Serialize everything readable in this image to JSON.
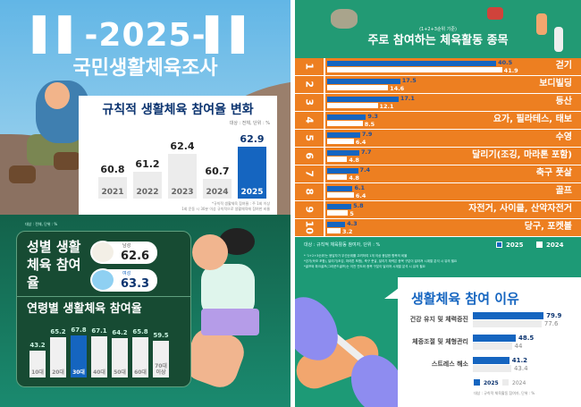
{
  "header": {
    "year_title": "-2025-",
    "title": "국민생활체육조사"
  },
  "colors": {
    "blue": "#1565c0",
    "orange": "#ed7f21",
    "teal": "#1d9a76",
    "dark_green": "#174b33",
    "light_gray": "#ececec"
  },
  "yearly": {
    "title": "규칙적 생활체육 참여율 변화",
    "unit": "대상 : 전체, 단위 : %",
    "note1": "*규칙적 생활체육 참여율 : 주 1회 이상",
    "note2": "1회 운동 시 30분 이상 규칙적으로 생활체육에 참여한 비율"
  },
  "gender": {
    "unit": "대상 : 전체, 단위 : %",
    "title": "성별 생활체육 참여율",
    "male_label": "남성",
    "male_value": "62.6",
    "female_label": "여성",
    "female_value": "63.3"
  },
  "age": {
    "title": "연령별 생활체육 참여율"
  },
  "ranking": {
    "subtitle": "(1+2+3순위 기준)",
    "title": "주로 참여하는 체육활동 종목",
    "unit": "대상 : 규칙적 체육활동 참여자, 단위 : %",
    "legend_2025": "2025",
    "legend_2024": "2024",
    "footnotes": [
      "* '1+2+3순위'는 응답자가 우선순위를 고려하여 1개 이상 응답한 항목의 비율",
      "*걷기(속보 포함), 달리기(조깅, 마라톤 포함), 축구 풋살, 달리기 체력은 종목 구분이 달라져 시계열 분석 시 유의 필요",
      "*골프와 파크골프(그라운드골프)는 이전 연도와 종목 구분이 달라져 시계열 분석 시 유의 필요"
    ]
  },
  "reasons": {
    "title": "생활체육 참여 이유",
    "unit": "대상 : 규칙적 체육활동 참여자, 단위 : %",
    "legend_2025": "2025",
    "legend_2024": "2024"
  },
  "chart_data": [
    {
      "type": "bar",
      "title": "규칙적 생활체육 참여율 변화",
      "categories": [
        "2021",
        "2022",
        "2023",
        "2024",
        "2025"
      ],
      "values": [
        60.8,
        61.2,
        62.4,
        60.7,
        62.9
      ],
      "highlight": "2025"
    },
    {
      "type": "bar",
      "title": "연령별 생활체육 참여율",
      "categories": [
        "10대",
        "20대",
        "30대",
        "40대",
        "50대",
        "60대",
        "70대 이상"
      ],
      "values": [
        43.2,
        65.2,
        67.8,
        67.1,
        64.2,
        65.8,
        59.5
      ],
      "highlight": "30대"
    },
    {
      "type": "bar",
      "orientation": "horizontal",
      "title": "주로 참여하는 체육활동 종목",
      "ranks": [
        "1",
        "2",
        "3",
        "4",
        "5",
        "6",
        "7",
        "8",
        "9",
        "10"
      ],
      "categories": [
        "걷기",
        "보디빌딩",
        "등산",
        "요가, 필라테스, 태보",
        "수영",
        "달리기(조깅, 마라톤 포함)",
        "축구 풋살",
        "골프",
        "자전거, 사이클, 산악자전거",
        "당구, 포켓볼"
      ],
      "series": [
        {
          "name": "2025",
          "values": [
            40.5,
            17.5,
            17.1,
            9.3,
            7.9,
            7.7,
            7.4,
            6.1,
            5.8,
            4.3
          ]
        },
        {
          "name": "2024",
          "values": [
            41.9,
            14.6,
            12.1,
            8.5,
            6.4,
            4.8,
            4.8,
            6.4,
            5.0,
            3.2
          ]
        }
      ]
    },
    {
      "type": "bar",
      "orientation": "horizontal",
      "title": "생활체육 참여 이유",
      "categories": [
        "건강 유지 및 체력증진",
        "체중조절 및 체형관리",
        "스트레스 해소"
      ],
      "series": [
        {
          "name": "2025",
          "values": [
            79.9,
            48.5,
            41.2
          ]
        },
        {
          "name": "2024",
          "values": [
            77.6,
            44.0,
            43.4
          ]
        }
      ]
    }
  ]
}
